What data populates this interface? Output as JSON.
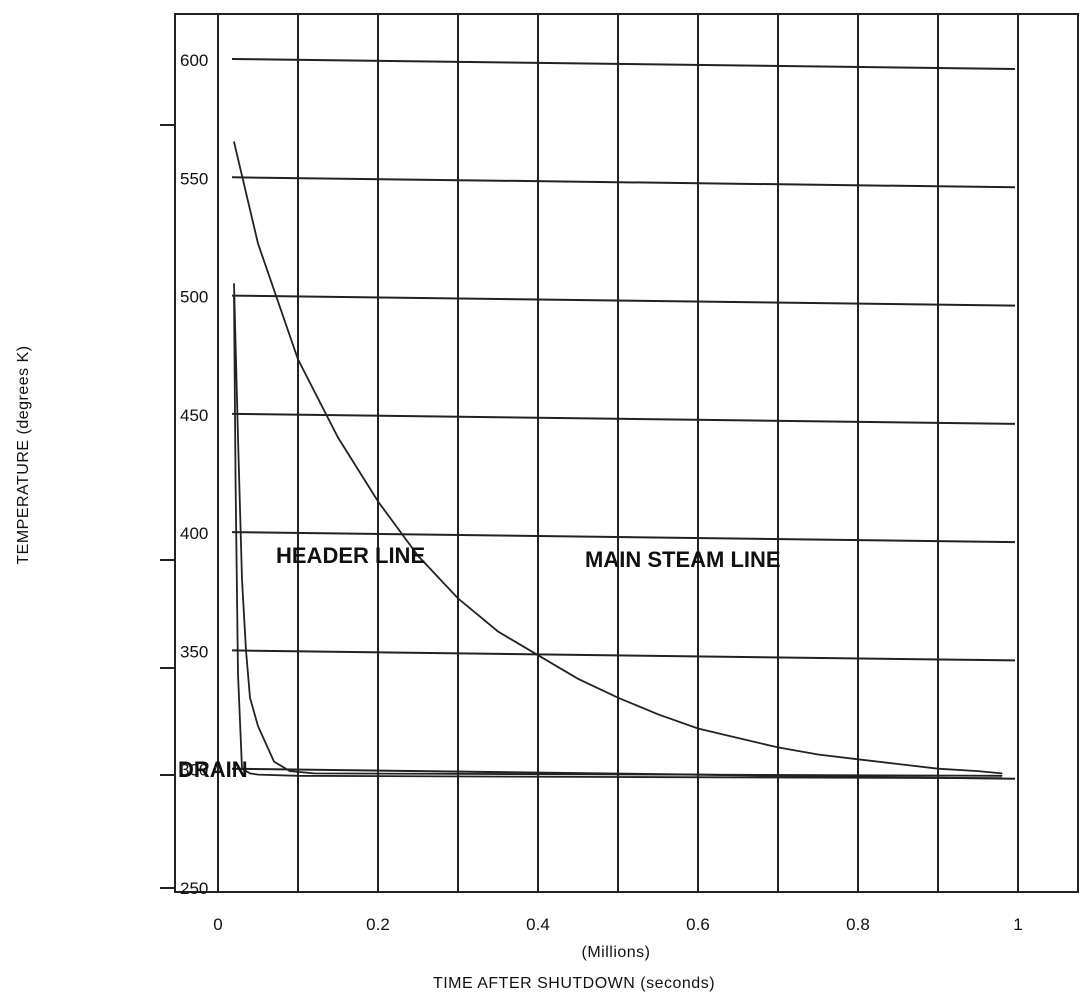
{
  "chart_data": {
    "type": "line",
    "title": "",
    "xlabel": "TIME AFTER SHUTDOWN (seconds)",
    "xlabel_unit": "(Millions)",
    "ylabel": "TEMPERATURE (degrees K)",
    "xlim": [
      0,
      1.1
    ],
    "ylim": [
      250,
      620
    ],
    "x_ticks": [
      0,
      0.2,
      0.4,
      0.6,
      0.8,
      1
    ],
    "x_tick_labels": [
      "0",
      "0.2",
      "0.4",
      "0.6",
      "0.8",
      "1"
    ],
    "y_ticks": [
      250,
      300,
      350,
      400,
      450,
      500,
      550,
      600
    ],
    "y_tick_labels": [
      "250",
      "300",
      "350",
      "400",
      "450",
      "500",
      "550",
      "600"
    ],
    "grid": true,
    "series": [
      {
        "name": "MAIN STEAM LINE",
        "x": [
          0.02,
          0.05,
          0.1,
          0.15,
          0.2,
          0.25,
          0.3,
          0.35,
          0.4,
          0.45,
          0.5,
          0.55,
          0.6,
          0.65,
          0.7,
          0.75,
          0.8,
          0.85,
          0.9,
          0.95,
          0.98
        ],
        "y": [
          565,
          522,
          473,
          440,
          413,
          390,
          372,
          358,
          348,
          338,
          330,
          323,
          317,
          313,
          309,
          306,
          304,
          302,
          300,
          299,
          298
        ]
      },
      {
        "name": "HEADER LINE",
        "x": [
          0.02,
          0.025,
          0.03,
          0.035,
          0.04,
          0.05,
          0.07,
          0.09,
          0.12,
          0.3,
          0.6,
          0.98
        ],
        "y": [
          505,
          440,
          380,
          350,
          330,
          318,
          303,
          299,
          298,
          297.8,
          297.5,
          297
        ]
      },
      {
        "name": "DRAIN",
        "x": [
          0.02,
          0.022,
          0.025,
          0.03,
          0.04,
          0.05,
          0.1,
          0.5,
          0.98
        ],
        "y": [
          500,
          420,
          340,
          300,
          298,
          297.5,
          297,
          296.5,
          296
        ]
      }
    ],
    "annotations": [
      "HEADER LINE",
      "MAIN STEAM LINE",
      "DRAIN"
    ]
  }
}
